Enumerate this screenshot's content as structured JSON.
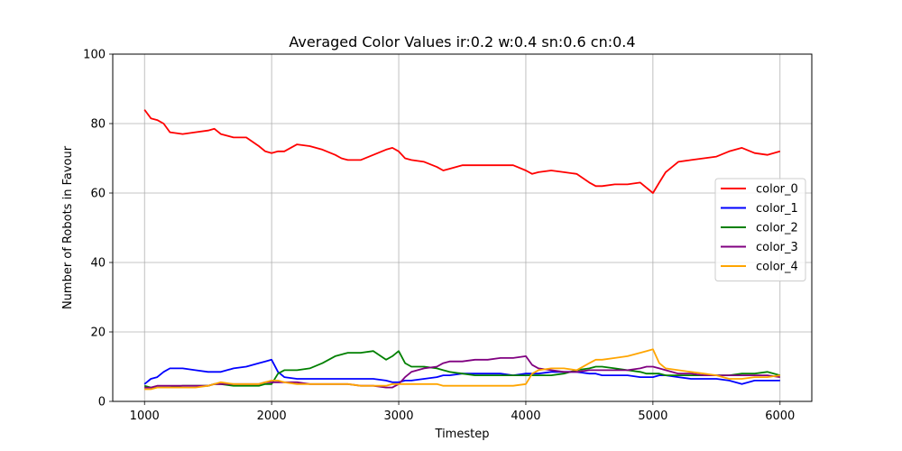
{
  "chart_data": {
    "type": "line",
    "title": "Averaged Color Values ir:0.2 w:0.4 sn:0.6 cn:0.4",
    "xlabel": "Timestep",
    "ylabel": "Number of Robots in Favour",
    "xlim": [
      750,
      6250
    ],
    "ylim": [
      0,
      100
    ],
    "xticks": [
      1000,
      2000,
      3000,
      4000,
      5000,
      6000
    ],
    "yticks": [
      0,
      20,
      40,
      60,
      80,
      100
    ],
    "grid": true,
    "legend_position": "center-right",
    "x": [
      1000,
      1050,
      1100,
      1150,
      1200,
      1300,
      1400,
      1500,
      1550,
      1600,
      1700,
      1800,
      1900,
      1950,
      2000,
      2050,
      2100,
      2200,
      2300,
      2400,
      2500,
      2550,
      2600,
      2700,
      2800,
      2900,
      2950,
      3000,
      3050,
      3100,
      3200,
      3300,
      3350,
      3400,
      3500,
      3600,
      3700,
      3800,
      3900,
      4000,
      4050,
      4100,
      4200,
      4300,
      4400,
      4500,
      4550,
      4600,
      4700,
      4800,
      4900,
      4950,
      5000,
      5050,
      5100,
      5200,
      5300,
      5400,
      5500,
      5600,
      5700,
      5800,
      5900,
      6000
    ],
    "series": [
      {
        "name": "color_0",
        "color": "#ff0000",
        "values": [
          84,
          81.5,
          81,
          80,
          77.5,
          77,
          77.5,
          78,
          78.5,
          77,
          76,
          76,
          73.5,
          72,
          71.5,
          72,
          72,
          74,
          73.5,
          72.5,
          71,
          70,
          69.5,
          69.5,
          71,
          72.5,
          73,
          72,
          70,
          69.5,
          69,
          67.5,
          66.5,
          67,
          68,
          68,
          68,
          68,
          68,
          66.5,
          65.5,
          66,
          66.5,
          66,
          65.5,
          63,
          62,
          62,
          62.5,
          62.5,
          63,
          61.5,
          60,
          63,
          66,
          69,
          69.5,
          70,
          70.5,
          72,
          73,
          71.5,
          71,
          72
        ]
      },
      {
        "name": "color_1",
        "color": "#0000ff",
        "values": [
          5,
          6.5,
          7,
          8.5,
          9.5,
          9.5,
          9,
          8.5,
          8.5,
          8.5,
          9.5,
          10,
          11,
          11.5,
          12,
          8.5,
          7,
          6.5,
          6.5,
          6.5,
          6.5,
          6.5,
          6.5,
          6.5,
          6.5,
          6,
          5.5,
          5.5,
          6,
          6,
          6.5,
          7,
          7.5,
          7.5,
          8,
          8,
          8,
          8,
          7.5,
          8,
          8,
          8,
          8.5,
          8.5,
          8.5,
          8,
          8,
          7.5,
          7.5,
          7.5,
          7,
          7,
          7,
          7.5,
          7.5,
          7,
          6.5,
          6.5,
          6.5,
          6,
          5,
          6,
          6,
          6
        ]
      },
      {
        "name": "color_2",
        "color": "#008000",
        "values": [
          4.5,
          4,
          4,
          4,
          4,
          4.5,
          4.5,
          4.5,
          5,
          5,
          4.5,
          4.5,
          4.5,
          5,
          5,
          8,
          9,
          9,
          9.5,
          11,
          13,
          13.5,
          14,
          14,
          14.5,
          12,
          13,
          14.5,
          11,
          10,
          10,
          9.5,
          9,
          8.5,
          8,
          7.5,
          7.5,
          7.5,
          7.5,
          7.5,
          7.5,
          7.5,
          7.5,
          8,
          9,
          9.5,
          10,
          10,
          9.5,
          9,
          8.5,
          8,
          8,
          8,
          7.5,
          7.5,
          7.5,
          7.5,
          7.5,
          7.5,
          8,
          8,
          8.5,
          7.5
        ]
      },
      {
        "name": "color_3",
        "color": "#800080",
        "values": [
          4,
          4,
          4.5,
          4.5,
          4.5,
          4.5,
          4.5,
          4.5,
          5,
          5,
          5,
          5,
          5,
          5.5,
          5.5,
          5.5,
          5.5,
          5.5,
          5,
          5,
          5,
          5,
          5,
          4.5,
          4.5,
          4,
          4,
          5,
          7,
          8.5,
          9.5,
          10,
          11,
          11.5,
          11.5,
          12,
          12,
          12.5,
          12.5,
          13,
          10.5,
          9.5,
          9,
          8.5,
          8.5,
          9,
          9,
          9,
          9,
          9,
          9.5,
          10,
          10,
          9.5,
          9,
          8,
          8,
          7.5,
          7.5,
          7.5,
          7.5,
          7.5,
          7.5,
          7
        ]
      },
      {
        "name": "color_4",
        "color": "#ffa500",
        "values": [
          3.5,
          3.5,
          4,
          4,
          4,
          4,
          4,
          4.5,
          5,
          5.5,
          5,
          5,
          5,
          5.5,
          6,
          6,
          5.5,
          5,
          5,
          5,
          5,
          5,
          5,
          4.5,
          4.5,
          4.5,
          5,
          5,
          5,
          5,
          5,
          5,
          4.5,
          4.5,
          4.5,
          4.5,
          4.5,
          4.5,
          4.5,
          5,
          8,
          9,
          9.5,
          9.5,
          9,
          11,
          12,
          12,
          12.5,
          13,
          14,
          14.5,
          15,
          11,
          9.5,
          9,
          8.5,
          8,
          7.5,
          6.5,
          6.5,
          7,
          7,
          7.5
        ]
      }
    ]
  }
}
